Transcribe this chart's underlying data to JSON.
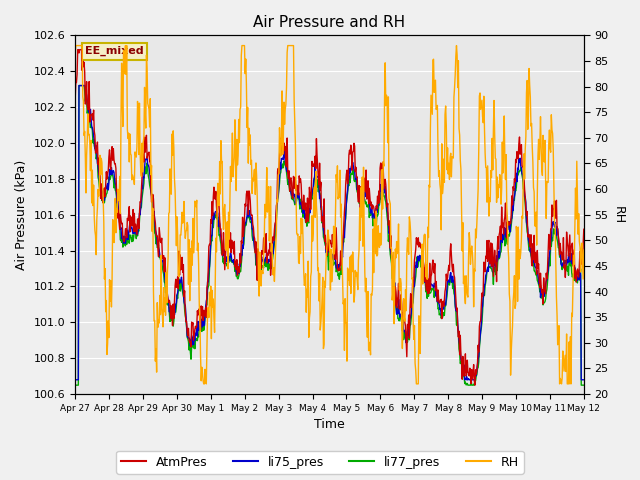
{
  "title": "Air Pressure and RH",
  "ylabel_left": "Air Pressure (kPa)",
  "ylabel_right": "RH",
  "xlabel": "Time",
  "ylim_left": [
    100.6,
    102.6
  ],
  "ylim_right": [
    20,
    90
  ],
  "label_box_text": "EE_mixed",
  "label_box_color": "#c8b400",
  "label_box_bg": "#f5f0c8",
  "bg_color": "#e8e8e8",
  "fig_bg_color": "#f0f0f0",
  "series": {
    "AtmPres": {
      "color": "#cc0000",
      "lw": 1.0
    },
    "li75_pres": {
      "color": "#0000cc",
      "lw": 1.0
    },
    "li77_pres": {
      "color": "#00aa00",
      "lw": 1.0
    },
    "RH": {
      "color": "#ffaa00",
      "lw": 1.0
    }
  },
  "xtick_labels": [
    "Apr 27",
    "Apr 28",
    "Apr 29",
    "Apr 30",
    "May 1",
    "May 2",
    "May 3",
    "May 4",
    "May 5",
    "May 6",
    "May 7",
    "May 8",
    "May 9",
    "May 10",
    "May 11",
    "May 12"
  ],
  "yticks_left": [
    100.6,
    100.8,
    101.0,
    101.2,
    101.4,
    101.6,
    101.8,
    102.0,
    102.2,
    102.4,
    102.6
  ],
  "yticks_right": [
    20,
    25,
    30,
    35,
    40,
    45,
    50,
    55,
    60,
    65,
    70,
    75,
    80,
    85,
    90
  ],
  "grid_color": "#ffffff",
  "figsize": [
    6.4,
    4.8
  ],
  "dpi": 100
}
